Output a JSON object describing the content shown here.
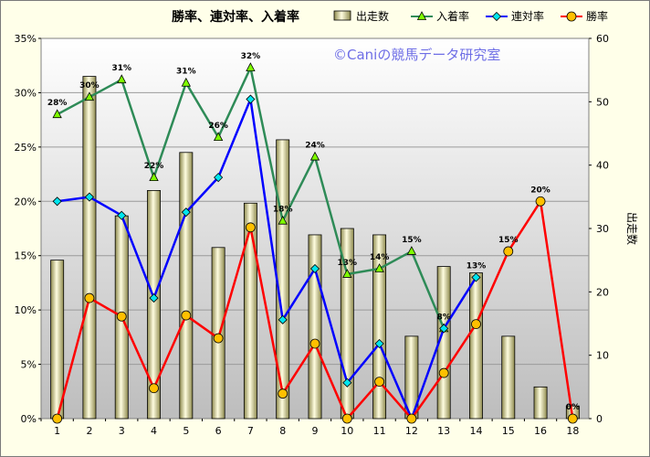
{
  "chart_data": {
    "type": "bar+line",
    "title": "勝率、連対率、入着率",
    "watermark": "©Caniの競馬データ研究室",
    "categories": [
      "1",
      "2",
      "3",
      "4",
      "5",
      "6",
      "7",
      "8",
      "9",
      "10",
      "11",
      "12",
      "13",
      "14",
      "15",
      "16",
      "18"
    ],
    "y_left": {
      "min": 0,
      "max": 35,
      "step": 5,
      "unit": "%"
    },
    "y_right": {
      "min": 0,
      "max": 60,
      "step": 10,
      "label": "出走数"
    },
    "bars": {
      "name": "出走数",
      "values": [
        25,
        54,
        32,
        36,
        42,
        27,
        34,
        44,
        29,
        30,
        29,
        13,
        24,
        23,
        13,
        5,
        2
      ]
    },
    "series": [
      {
        "name": "入着率",
        "color": "#2e8b57",
        "marker": "triangle",
        "values": [
          28,
          29.6,
          31.2,
          22.2,
          30.9,
          25.9,
          32.3,
          18.2,
          24.1,
          13.3,
          13.8,
          15.4,
          8.3,
          null,
          null,
          null,
          null
        ],
        "labels": [
          "28%",
          "30%",
          "31%",
          "22%",
          "31%",
          "26%",
          "32%",
          "18%",
          "24%",
          "13%",
          "14%",
          "15%",
          "8%",
          "13%",
          "15%",
          "20%",
          "0%"
        ]
      },
      {
        "name": "連対率",
        "color": "#0000ff",
        "marker": "diamond",
        "values": [
          20,
          20.4,
          18.7,
          11.1,
          19,
          22.2,
          29.4,
          9.1,
          13.8,
          3.3,
          6.9,
          0,
          8.3,
          13,
          null,
          null,
          null
        ]
      },
      {
        "name": "勝率",
        "color": "#ff0000",
        "marker": "circle",
        "values": [
          0,
          11.1,
          9.4,
          2.8,
          9.5,
          7.4,
          17.6,
          2.3,
          6.9,
          0,
          3.4,
          0,
          4.2,
          8.7,
          15.4,
          20,
          0
        ]
      }
    ],
    "legend_position": "top-right",
    "grid": true
  }
}
